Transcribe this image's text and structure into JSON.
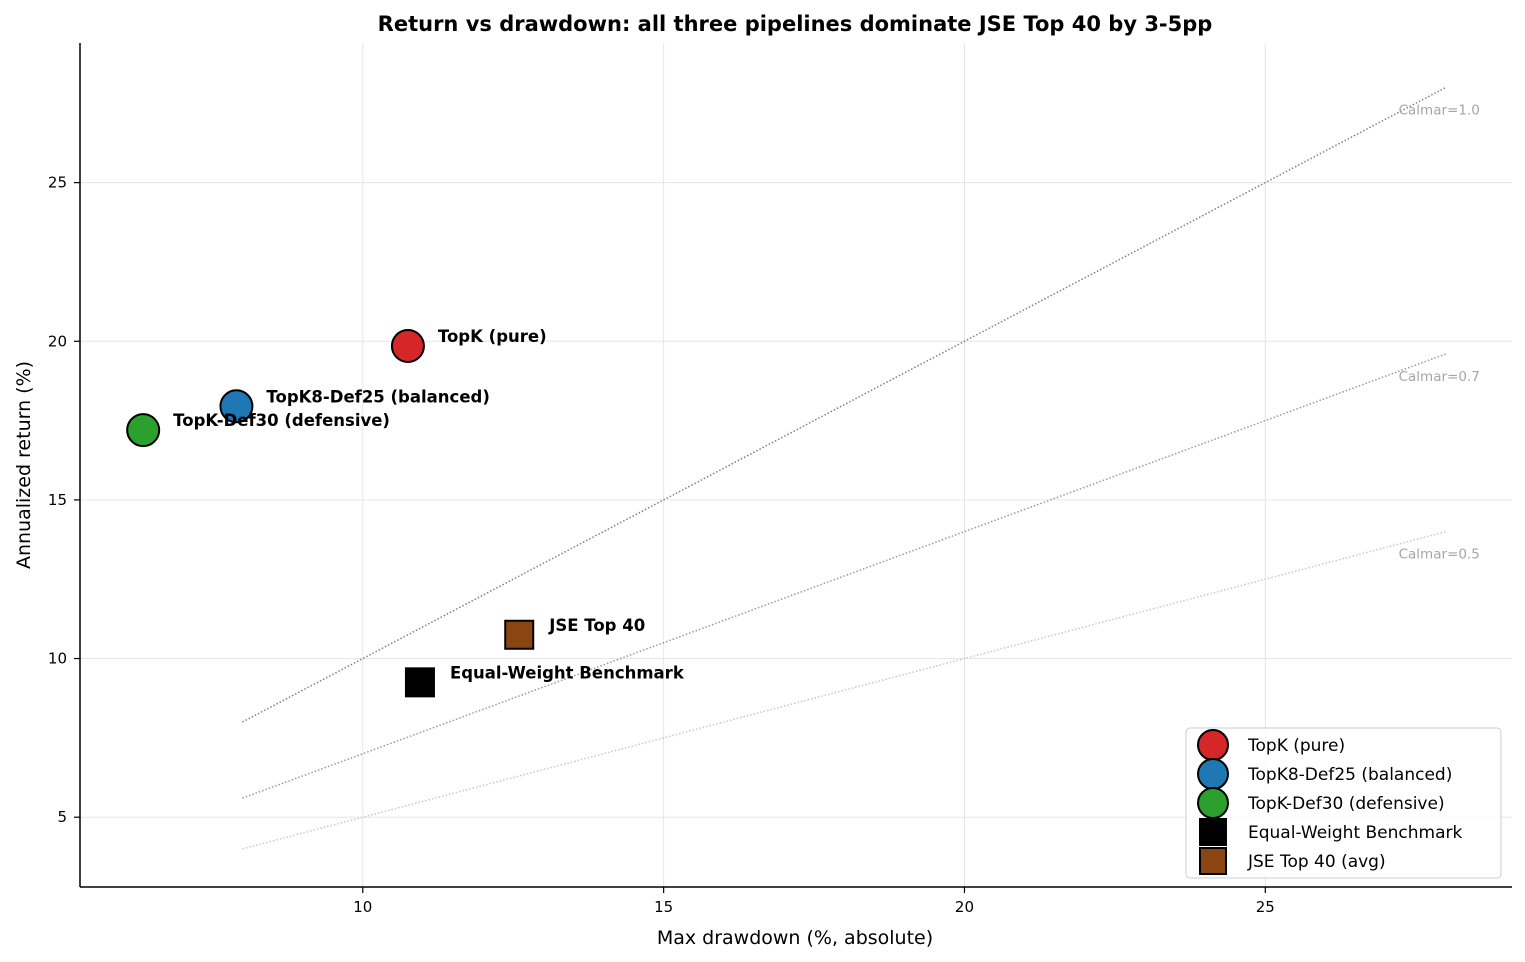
{
  "chart_data": {
    "type": "scatter",
    "title": "Return vs drawdown: all three pipelines dominate JSE Top 40 by 3-5pp",
    "xlabel": "Max drawdown (%, absolute)",
    "ylabel": "Annualized return (%)",
    "xlim": [
      5.3,
      29.1
    ],
    "ylim": [
      2.8,
      29.4
    ],
    "xticks": [
      10,
      15,
      20,
      25
    ],
    "yticks": [
      5,
      10,
      15,
      20,
      25
    ],
    "grid": true,
    "legend_position": "lower-right",
    "series": [
      {
        "name": "TopK (pure)",
        "label": "TopK (pure)",
        "x": 10.75,
        "y": 19.85,
        "color": "#d62728",
        "marker": "circle"
      },
      {
        "name": "TopK8-Def25 (balanced)",
        "label": "TopK8-Def25 (balanced)",
        "x": 7.9,
        "y": 17.95,
        "color": "#1f77b4",
        "marker": "circle"
      },
      {
        "name": "TopK-Def30 (defensive)",
        "label": "TopK-Def30 (defensive)",
        "x": 6.35,
        "y": 17.2,
        "color": "#2ca02c",
        "marker": "circle"
      },
      {
        "name": "Equal-Weight Benchmark",
        "label": "Equal-Weight Benchmark",
        "x": 10.95,
        "y": 9.25,
        "color": "#000000",
        "marker": "square"
      },
      {
        "name": "JSE Top 40 (avg)",
        "label": "JSE Top 40",
        "x": 12.6,
        "y": 10.75,
        "color": "#8b4513",
        "marker": "square"
      }
    ],
    "reference_lines": [
      {
        "label": "Calmar=1.0",
        "slope": 1.0,
        "x": [
          8,
          28
        ],
        "color": "#808080"
      },
      {
        "label": "Calmar=0.7",
        "slope": 0.7,
        "x": [
          8,
          28
        ],
        "color": "#9a9a9a"
      },
      {
        "label": "Calmar=0.5",
        "slope": 0.5,
        "x": [
          8,
          28
        ],
        "color": "#c8c8c8"
      }
    ]
  }
}
